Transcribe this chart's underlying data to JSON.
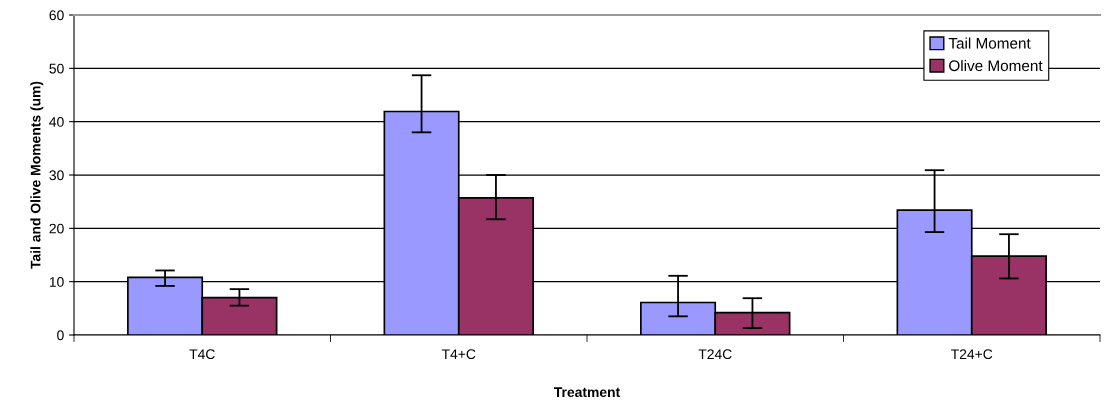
{
  "chart_data": {
    "type": "bar",
    "xlabel": "Treatment",
    "ylabel": "Tail and Olive Moments (um)",
    "categories": [
      "T4C",
      "T4+C",
      "T24C",
      "T24+C"
    ],
    "series": [
      {
        "name": "Tail Moment",
        "color": "#9999ff",
        "values": [
          10.8,
          41.9,
          6.1,
          23.4
        ],
        "errors": [
          [
            9.2,
            12.1
          ],
          [
            38.0,
            48.7
          ],
          [
            3.5,
            11.1
          ],
          [
            19.3,
            30.9
          ]
        ]
      },
      {
        "name": "Olive Moment",
        "color": "#993366",
        "values": [
          7.0,
          25.7,
          4.2,
          14.8
        ],
        "errors": [
          [
            5.5,
            8.6
          ],
          [
            21.7,
            30.0
          ],
          [
            1.3,
            6.9
          ],
          [
            10.6,
            18.9
          ]
        ]
      }
    ],
    "ylim": [
      0,
      60
    ],
    "yticks": [
      0,
      10,
      20,
      30,
      40,
      50,
      60
    ],
    "grid": "y",
    "legend": "top right"
  }
}
